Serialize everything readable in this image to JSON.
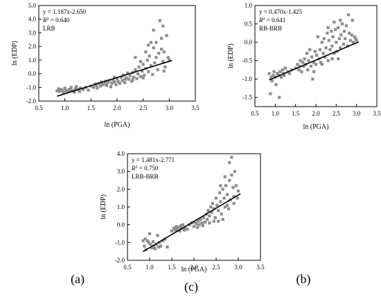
{
  "chart_data": [
    {
      "type": "scatter",
      "panel_label": "(a)",
      "xlabel": "ln (PGA)",
      "ylabel": "ln (EDP)",
      "xlim": [
        0.5,
        3.5
      ],
      "ylim": [
        -2.0,
        5.0
      ],
      "x_ticks": [
        "0.5",
        "1.0",
        "1.5",
        "2.0",
        "2.5",
        "3.0",
        "3.5"
      ],
      "y_ticks": [
        "-2.0",
        "-1.0",
        "0.0",
        "1.0",
        "2.0",
        "3.0",
        "4.0",
        "5.0"
      ],
      "annotation": {
        "equation": "y = 1.187x-2.650",
        "r2_prefix": "R",
        "r2_sup": "2",
        "r2_value": " = 0.640",
        "label": "LRB"
      },
      "fit": {
        "slope": 1.187,
        "intercept": -2.65,
        "x_range": [
          0.85,
          3.05
        ]
      },
      "marker_color": "#8c8c8c",
      "points": [
        [
          0.85,
          -1.25
        ],
        [
          0.88,
          -1.1
        ],
        [
          0.9,
          -1.3
        ],
        [
          0.92,
          -1.15
        ],
        [
          0.95,
          -1.2
        ],
        [
          0.97,
          -1.35
        ],
        [
          1.0,
          -1.05
        ],
        [
          1.02,
          -1.25
        ],
        [
          1.05,
          -1.3
        ],
        [
          1.08,
          -1.15
        ],
        [
          1.1,
          -1.2
        ],
        [
          1.12,
          -1.0
        ],
        [
          1.15,
          -1.25
        ],
        [
          1.18,
          -1.35
        ],
        [
          1.2,
          -1.1
        ],
        [
          1.22,
          -0.95
        ],
        [
          1.25,
          -1.15
        ],
        [
          1.28,
          -1.3
        ],
        [
          1.3,
          -1.05
        ],
        [
          1.35,
          -1.15
        ],
        [
          1.4,
          -1.0
        ],
        [
          1.45,
          -1.2
        ],
        [
          1.5,
          -0.9
        ],
        [
          1.55,
          -1.0
        ],
        [
          1.58,
          -0.75
        ],
        [
          1.6,
          -0.85
        ],
        [
          1.62,
          -1.05
        ],
        [
          1.65,
          -0.7
        ],
        [
          1.68,
          -0.9
        ],
        [
          1.7,
          -0.6
        ],
        [
          1.72,
          -0.8
        ],
        [
          1.75,
          -0.75
        ],
        [
          1.78,
          -0.55
        ],
        [
          1.8,
          -0.85
        ],
        [
          1.82,
          -0.65
        ],
        [
          1.85,
          -0.5
        ],
        [
          1.88,
          -0.95
        ],
        [
          1.9,
          -0.7
        ],
        [
          1.92,
          -0.45
        ],
        [
          1.95,
          -0.6
        ],
        [
          1.98,
          -0.8
        ],
        [
          2.0,
          -0.35
        ],
        [
          2.02,
          -0.55
        ],
        [
          2.05,
          -0.7
        ],
        [
          2.08,
          -0.25
        ],
        [
          2.1,
          -0.5
        ],
        [
          2.12,
          -0.1
        ],
        [
          2.15,
          -0.65
        ],
        [
          2.18,
          -0.3
        ],
        [
          2.2,
          0.05
        ],
        [
          2.22,
          -0.4
        ],
        [
          2.25,
          -0.15
        ],
        [
          2.28,
          -0.55
        ],
        [
          2.3,
          0.1
        ],
        [
          2.32,
          -0.25
        ],
        [
          2.35,
          0.3
        ],
        [
          2.38,
          -0.35
        ],
        [
          2.4,
          0.0
        ],
        [
          2.42,
          0.5
        ],
        [
          2.45,
          -0.2
        ],
        [
          2.48,
          0.2
        ],
        [
          2.5,
          0.7
        ],
        [
          2.52,
          -0.1
        ],
        [
          2.55,
          0.4
        ],
        [
          2.58,
          1.0
        ],
        [
          2.6,
          0.15
        ],
        [
          2.62,
          1.3
        ],
        [
          2.65,
          0.6
        ],
        [
          2.68,
          -0.05
        ],
        [
          2.7,
          1.9
        ],
        [
          2.72,
          0.8
        ],
        [
          2.75,
          2.3
        ],
        [
          2.78,
          0.3
        ],
        [
          2.8,
          1.5
        ],
        [
          2.82,
          3.9
        ],
        [
          2.85,
          2.6
        ],
        [
          2.88,
          0.9
        ],
        [
          2.9,
          1.6
        ],
        [
          2.92,
          0.5
        ],
        [
          2.95,
          2.8
        ],
        [
          2.98,
          1.2
        ],
        [
          3.0,
          1.0
        ],
        [
          2.6,
          2.1
        ],
        [
          2.55,
          1.6
        ],
        [
          2.45,
          0.9
        ],
        [
          2.35,
          1.2
        ],
        [
          2.7,
          3.2
        ],
        [
          2.88,
          3.5
        ],
        [
          2.5,
          -0.3
        ],
        [
          2.3,
          -0.45
        ],
        [
          2.15,
          -0.4
        ],
        [
          1.95,
          -0.25
        ],
        [
          2.65,
          2.3
        ],
        [
          2.75,
          1.2
        ],
        [
          2.85,
          1.8
        ],
        [
          2.9,
          0.2
        ]
      ]
    },
    {
      "type": "scatter",
      "panel_label": "(b)",
      "xlabel": "ln (PGA)",
      "ylabel": "ln (EDP)",
      "xlim": [
        0.5,
        3.5
      ],
      "ylim": [
        -1.75,
        1.0
      ],
      "x_ticks": [
        "0.5",
        "1.0",
        "1.5",
        "2.0",
        "2.5",
        "3.0",
        "3.5"
      ],
      "y_ticks": [
        "-1.5",
        "-1.0",
        "-0.5",
        "0.0",
        "0.5",
        "1.0"
      ],
      "annotation": {
        "equation": "y = 0.470x-1.425",
        "r2_prefix": "R",
        "r2_sup": "2",
        "r2_value": " = 0.641",
        "label": "RB-BRB"
      },
      "fit": {
        "slope": 0.47,
        "intercept": -1.425,
        "x_range": [
          0.85,
          3.05
        ]
      },
      "marker_color": "#8c8c8c",
      "points": [
        [
          0.85,
          -0.85
        ],
        [
          0.88,
          -1.4
        ],
        [
          0.9,
          -0.95
        ],
        [
          0.92,
          -1.05
        ],
        [
          0.95,
          -0.9
        ],
        [
          0.97,
          -0.8
        ],
        [
          1.0,
          -0.95
        ],
        [
          1.02,
          -1.15
        ],
        [
          1.05,
          -0.85
        ],
        [
          1.08,
          -0.9
        ],
        [
          1.1,
          -1.5
        ],
        [
          1.12,
          -0.8
        ],
        [
          1.15,
          -0.95
        ],
        [
          1.18,
          -0.75
        ],
        [
          1.2,
          -0.85
        ],
        [
          1.22,
          -0.9
        ],
        [
          1.25,
          -0.7
        ],
        [
          1.3,
          -0.8
        ],
        [
          1.35,
          -0.85
        ],
        [
          1.4,
          -0.75
        ],
        [
          1.5,
          -0.7
        ],
        [
          1.55,
          -0.6
        ],
        [
          1.58,
          -0.75
        ],
        [
          1.6,
          -0.65
        ],
        [
          1.62,
          -0.5
        ],
        [
          1.65,
          -0.8
        ],
        [
          1.68,
          -0.55
        ],
        [
          1.7,
          -0.65
        ],
        [
          1.72,
          -0.45
        ],
        [
          1.75,
          -0.6
        ],
        [
          1.78,
          -0.3
        ],
        [
          1.8,
          -0.75
        ],
        [
          1.82,
          -0.5
        ],
        [
          1.85,
          -0.2
        ],
        [
          1.88,
          -0.65
        ],
        [
          1.9,
          -0.4
        ],
        [
          1.92,
          -1.0
        ],
        [
          1.95,
          -0.55
        ],
        [
          1.98,
          -0.25
        ],
        [
          2.0,
          -0.6
        ],
        [
          2.02,
          -0.35
        ],
        [
          2.05,
          0.15
        ],
        [
          2.08,
          -0.45
        ],
        [
          2.1,
          -0.2
        ],
        [
          2.12,
          -0.55
        ],
        [
          2.15,
          0.0
        ],
        [
          2.18,
          -0.3
        ],
        [
          2.2,
          0.1
        ],
        [
          2.22,
          -0.4
        ],
        [
          2.25,
          -0.15
        ],
        [
          2.28,
          0.25
        ],
        [
          2.3,
          -0.5
        ],
        [
          2.32,
          0.05
        ],
        [
          2.35,
          -0.2
        ],
        [
          2.38,
          0.3
        ],
        [
          2.4,
          -0.1
        ],
        [
          2.42,
          0.15
        ],
        [
          2.45,
          -0.3
        ],
        [
          2.48,
          0.35
        ],
        [
          2.5,
          0.0
        ],
        [
          2.52,
          -0.25
        ],
        [
          2.55,
          0.4
        ],
        [
          2.58,
          0.1
        ],
        [
          2.6,
          -0.15
        ],
        [
          2.62,
          0.2
        ],
        [
          2.65,
          0.5
        ],
        [
          2.68,
          -0.05
        ],
        [
          2.7,
          0.3
        ],
        [
          2.72,
          0.1
        ],
        [
          2.75,
          0.45
        ],
        [
          2.78,
          -0.1
        ],
        [
          2.8,
          0.75
        ],
        [
          2.82,
          0.25
        ],
        [
          2.85,
          0.05
        ],
        [
          2.88,
          0.2
        ],
        [
          2.9,
          0.6
        ],
        [
          2.92,
          0.0
        ],
        [
          2.95,
          0.15
        ],
        [
          2.98,
          0.1
        ],
        [
          3.0,
          0.05
        ],
        [
          2.3,
          0.4
        ],
        [
          2.45,
          0.55
        ],
        [
          2.6,
          0.6
        ],
        [
          2.15,
          -0.6
        ],
        [
          2.4,
          -0.45
        ],
        [
          1.95,
          -0.8
        ],
        [
          2.55,
          -0.45
        ]
      ]
    },
    {
      "type": "scatter",
      "panel_label": "(c)",
      "xlabel": "ln (PGA)",
      "ylabel": "ln (EDP)",
      "xlim": [
        0.5,
        3.5
      ],
      "ylim": [
        -2.0,
        4.0
      ],
      "x_ticks": [
        "0.5",
        "1.0",
        "1.5",
        "2.0",
        "2.5",
        "3.0",
        "3.5"
      ],
      "y_ticks": [
        "-2.0",
        "-1.0",
        "0.0",
        "1.0",
        "2.0",
        "3.0",
        "4.0"
      ],
      "annotation": {
        "equation": "y = 1.481x-2.771",
        "r2_prefix": "R",
        "r2_sup": "2",
        "r2_value": " = 0.750",
        "label": "LRB-BRB"
      },
      "fit": {
        "slope": 1.481,
        "intercept": -2.771,
        "x_range": [
          0.85,
          3.05
        ]
      },
      "marker_color": "#8c8c8c",
      "points": [
        [
          0.85,
          -0.9
        ],
        [
          0.88,
          -1.2
        ],
        [
          0.9,
          -0.8
        ],
        [
          0.92,
          -1.4
        ],
        [
          0.95,
          -0.9
        ],
        [
          0.98,
          -1.0
        ],
        [
          1.0,
          -0.5
        ],
        [
          1.02,
          -1.1
        ],
        [
          1.05,
          -1.3
        ],
        [
          1.08,
          -0.95
        ],
        [
          1.1,
          -1.2
        ],
        [
          1.12,
          -1.35
        ],
        [
          1.15,
          -1.1
        ],
        [
          1.18,
          -0.6
        ],
        [
          1.2,
          -1.25
        ],
        [
          1.22,
          -1.0
        ],
        [
          1.25,
          -1.2
        ],
        [
          1.3,
          -0.9
        ],
        [
          1.35,
          -0.8
        ],
        [
          1.4,
          -1.25
        ],
        [
          1.5,
          -0.35
        ],
        [
          1.55,
          -0.2
        ],
        [
          1.58,
          -0.3
        ],
        [
          1.6,
          -0.1
        ],
        [
          1.62,
          -0.25
        ],
        [
          1.65,
          -0.15
        ],
        [
          1.68,
          -0.35
        ],
        [
          1.7,
          -0.05
        ],
        [
          1.72,
          -0.2
        ],
        [
          1.75,
          0.0
        ],
        [
          1.78,
          -0.3
        ],
        [
          1.8,
          -0.15
        ],
        [
          1.85,
          -0.25
        ],
        [
          1.9,
          0.0
        ],
        [
          1.95,
          0.1
        ],
        [
          2.0,
          -0.1
        ],
        [
          2.02,
          0.15
        ],
        [
          2.05,
          0.05
        ],
        [
          2.08,
          -0.15
        ],
        [
          2.1,
          0.2
        ],
        [
          2.12,
          0.0
        ],
        [
          2.15,
          0.3
        ],
        [
          2.18,
          0.1
        ],
        [
          2.2,
          -0.05
        ],
        [
          2.22,
          0.4
        ],
        [
          2.25,
          0.15
        ],
        [
          2.28,
          0.6
        ],
        [
          2.3,
          0.3
        ],
        [
          2.32,
          0.8
        ],
        [
          2.35,
          0.5
        ],
        [
          2.38,
          1.0
        ],
        [
          2.4,
          0.7
        ],
        [
          2.42,
          1.2
        ],
        [
          2.45,
          0.9
        ],
        [
          2.48,
          0.4
        ],
        [
          2.5,
          1.5
        ],
        [
          2.52,
          1.1
        ],
        [
          2.55,
          0.8
        ],
        [
          2.58,
          1.8
        ],
        [
          2.6,
          1.3
        ],
        [
          2.62,
          0.6
        ],
        [
          2.65,
          2.0
        ],
        [
          2.68,
          1.5
        ],
        [
          2.7,
          1.0
        ],
        [
          2.72,
          2.2
        ],
        [
          2.75,
          1.7
        ],
        [
          2.78,
          0.9
        ],
        [
          2.8,
          2.5
        ],
        [
          2.82,
          1.4
        ],
        [
          2.85,
          3.8
        ],
        [
          2.88,
          2.1
        ],
        [
          2.9,
          1.6
        ],
        [
          2.92,
          3.0
        ],
        [
          2.95,
          2.2
        ],
        [
          2.98,
          1.5
        ],
        [
          3.0,
          1.9
        ],
        [
          2.6,
          2.2
        ],
        [
          2.7,
          2.7
        ],
        [
          2.55,
          0.2
        ],
        [
          2.45,
          0.2
        ],
        [
          2.35,
          0.1
        ],
        [
          2.75,
          1.1
        ],
        [
          2.85,
          2.8
        ],
        [
          2.9,
          1.2
        ],
        [
          2.65,
          0.3
        ],
        [
          2.8,
          3.5
        ]
      ]
    }
  ]
}
